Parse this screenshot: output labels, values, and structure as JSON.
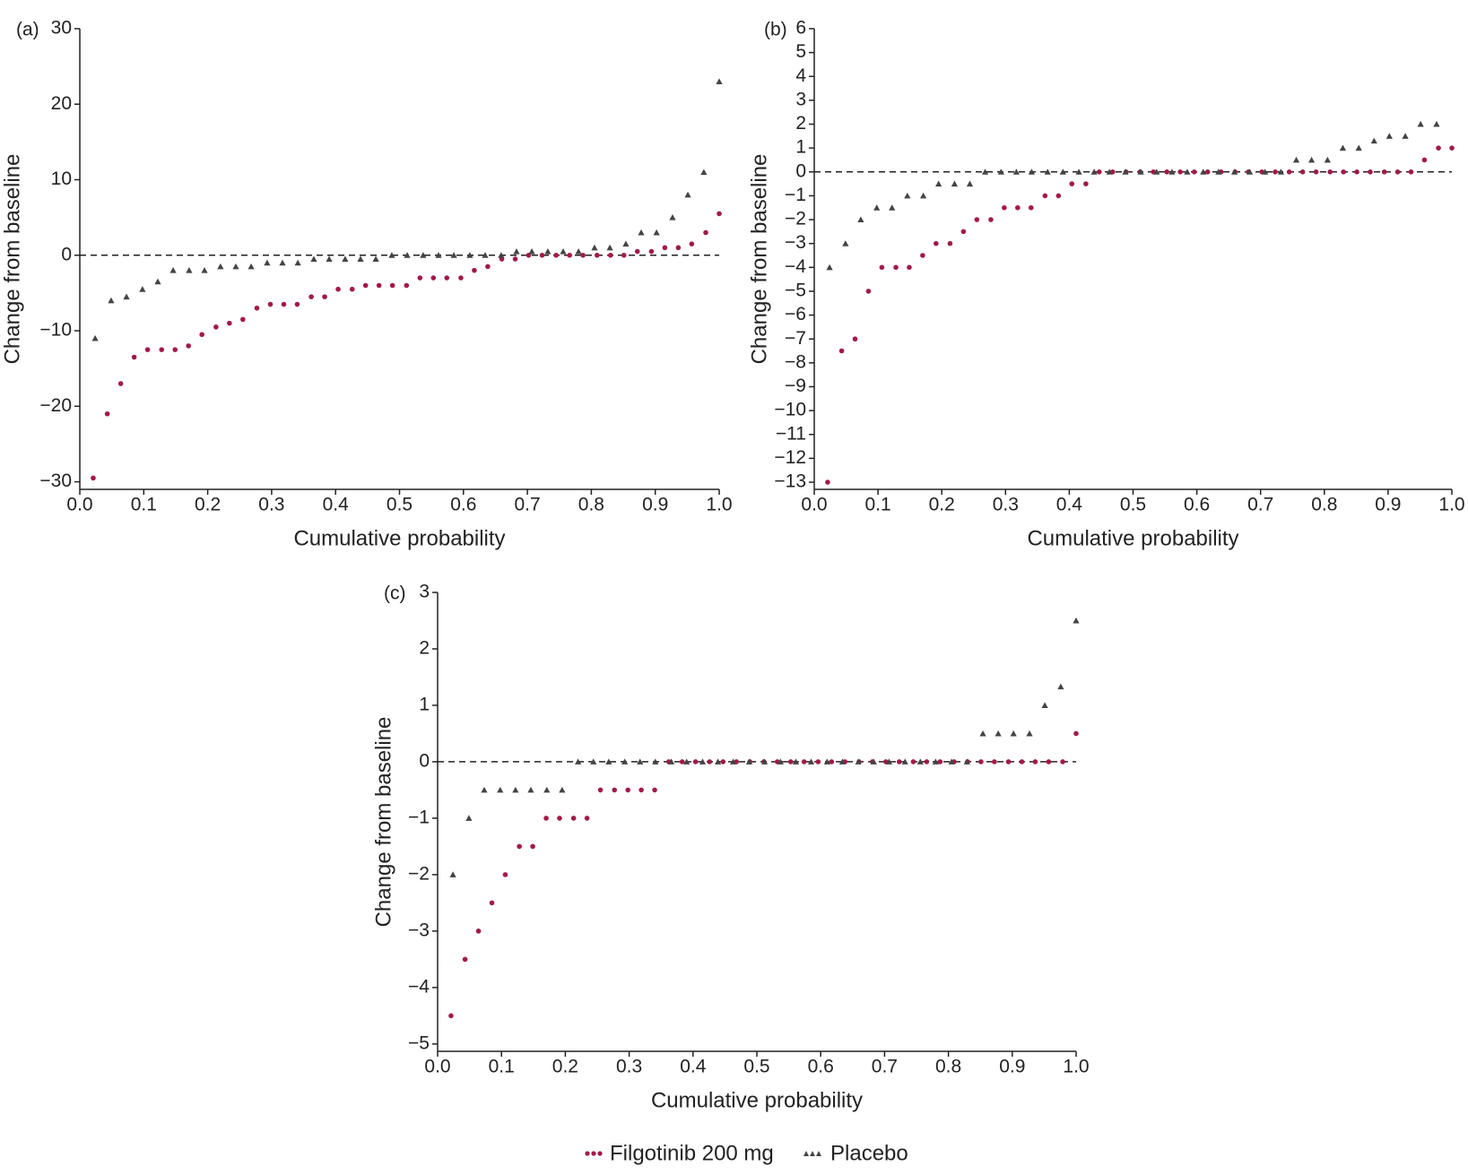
{
  "chart_data": [
    {
      "type": "scatter",
      "title": "(a)",
      "x_label": "Cumulative probability",
      "y_label": "Change from baseline",
      "xlim": [
        0,
        1
      ],
      "ylim": [
        -31,
        30
      ],
      "reference_line": 0,
      "xticks": [
        {
          "value": 0,
          "label": "0.0"
        },
        0.1,
        0.2,
        0.3,
        0.4,
        0.5,
        0.6,
        0.7,
        0.8,
        0.9,
        {
          "value": 1,
          "label": "1.0"
        }
      ],
      "yticks": [
        {
          "value": -30,
          "label": "−30"
        },
        {
          "value": -20,
          "label": "−20"
        },
        {
          "value": -10,
          "label": "−10"
        },
        0,
        10,
        20,
        30
      ],
      "series": [
        {
          "name": "Filgotinib 200 mg",
          "color": "#a3194a",
          "marker": "circle",
          "x": [
            0.021,
            0.043,
            0.064,
            0.085,
            0.106,
            0.128,
            0.149,
            0.17,
            0.191,
            0.213,
            0.234,
            0.255,
            0.277,
            0.298,
            0.319,
            0.34,
            0.362,
            0.383,
            0.404,
            0.426,
            0.447,
            0.468,
            0.489,
            0.511,
            0.532,
            0.553,
            0.574,
            0.596,
            0.617,
            0.638,
            0.66,
            0.681,
            0.702,
            0.723,
            0.745,
            0.766,
            0.787,
            0.809,
            0.83,
            0.851,
            0.872,
            0.894,
            0.915,
            0.936,
            0.957,
            0.979,
            1.0
          ],
          "values": [
            -29.5,
            -21,
            -17,
            -13.5,
            -12.5,
            -12.5,
            -12.5,
            -12,
            -10.5,
            -9.5,
            -9,
            -8.5,
            -7,
            -6.5,
            -6.5,
            -6.5,
            -5.5,
            -5.5,
            -4.5,
            -4.5,
            -4,
            -4,
            -4,
            -4,
            -3,
            -3,
            -3,
            -3,
            -2,
            -1.5,
            -0.5,
            -0.5,
            0,
            0,
            0,
            0,
            0,
            0,
            0,
            0,
            0.5,
            0.5,
            1,
            1,
            1.5,
            3,
            5.5
          ]
        },
        {
          "name": "Placebo",
          "color": "#444444",
          "marker": "triangle",
          "x": [
            0.024,
            0.049,
            0.073,
            0.098,
            0.122,
            0.146,
            0.171,
            0.195,
            0.22,
            0.244,
            0.268,
            0.293,
            0.317,
            0.341,
            0.366,
            0.39,
            0.415,
            0.439,
            0.463,
            0.488,
            0.512,
            0.537,
            0.561,
            0.585,
            0.61,
            0.634,
            0.659,
            0.683,
            0.707,
            0.732,
            0.756,
            0.78,
            0.805,
            0.829,
            0.854,
            0.878,
            0.902,
            0.927,
            0.951,
            0.976,
            1.0
          ],
          "values": [
            -11,
            -6,
            -5.5,
            -4.5,
            -3.5,
            -2,
            -2,
            -2,
            -1.5,
            -1.5,
            -1.5,
            -1,
            -1,
            -1,
            -0.5,
            -0.5,
            -0.5,
            -0.5,
            -0.5,
            0,
            0,
            0,
            0,
            0,
            0,
            0,
            0,
            0.5,
            0.5,
            0.5,
            0.5,
            0.5,
            1,
            1,
            1.5,
            3,
            3,
            5,
            8,
            11,
            23
          ]
        }
      ]
    },
    {
      "type": "scatter",
      "title": "(b)",
      "x_label": "Cumulative probability",
      "y_label": "Change from baseline",
      "xlim": [
        0,
        1
      ],
      "ylim": [
        -13.3,
        6
      ],
      "reference_line": 0,
      "xticks": [
        {
          "value": 0,
          "label": "0.0"
        },
        0.1,
        0.2,
        0.3,
        0.4,
        0.5,
        0.6,
        0.7,
        0.8,
        0.9,
        {
          "value": 1,
          "label": "1.0"
        }
      ],
      "yticks": [
        {
          "value": -13,
          "label": "−13"
        },
        {
          "value": -12,
          "label": "−12"
        },
        {
          "value": -11,
          "label": "−11"
        },
        {
          "value": -10,
          "label": "−10"
        },
        {
          "value": -9,
          "label": "−9"
        },
        {
          "value": -8,
          "label": "−8"
        },
        {
          "value": -7,
          "label": "−7"
        },
        {
          "value": -6,
          "label": "−6"
        },
        {
          "value": -5,
          "label": "−5"
        },
        {
          "value": -4,
          "label": "−4"
        },
        {
          "value": -3,
          "label": "−3"
        },
        {
          "value": -2,
          "label": "−2"
        },
        {
          "value": -1,
          "label": "−1"
        },
        0,
        1,
        2,
        3,
        4,
        5,
        6
      ],
      "series": [
        {
          "name": "Filgotinib 200 mg",
          "color": "#a3194a",
          "marker": "circle",
          "x": [
            0.021,
            0.043,
            0.064,
            0.085,
            0.106,
            0.128,
            0.149,
            0.17,
            0.191,
            0.213,
            0.234,
            0.255,
            0.277,
            0.298,
            0.319,
            0.34,
            0.362,
            0.383,
            0.404,
            0.426,
            0.447,
            0.468,
            0.489,
            0.511,
            0.532,
            0.553,
            0.574,
            0.596,
            0.617,
            0.638,
            0.66,
            0.681,
            0.702,
            0.723,
            0.745,
            0.766,
            0.787,
            0.809,
            0.83,
            0.851,
            0.872,
            0.894,
            0.915,
            0.936,
            0.957,
            0.979,
            1.0
          ],
          "values": [
            -13,
            -7.5,
            -7,
            -5,
            -4,
            -4,
            -4,
            -3.5,
            -3,
            -3,
            -2.5,
            -2,
            -2,
            -1.5,
            -1.5,
            -1.5,
            -1,
            -1,
            -0.5,
            -0.5,
            0,
            0,
            0,
            0,
            0,
            0,
            0,
            0,
            0,
            0,
            0,
            0,
            0,
            0,
            0,
            0,
            0,
            0,
            0,
            0,
            0,
            0,
            0,
            0,
            0.5,
            1,
            1
          ]
        },
        {
          "name": "Placebo",
          "color": "#444444",
          "marker": "triangle",
          "x": [
            0.024,
            0.049,
            0.073,
            0.098,
            0.122,
            0.146,
            0.171,
            0.195,
            0.22,
            0.244,
            0.268,
            0.293,
            0.317,
            0.341,
            0.366,
            0.39,
            0.415,
            0.439,
            0.463,
            0.488,
            0.512,
            0.537,
            0.561,
            0.585,
            0.61,
            0.634,
            0.659,
            0.683,
            0.707,
            0.732,
            0.756,
            0.78,
            0.805,
            0.829,
            0.854,
            0.878,
            0.902,
            0.927,
            0.951,
            0.976
          ],
          "values": [
            -4,
            -3,
            -2,
            -1.5,
            -1.5,
            -1,
            -1,
            -0.5,
            -0.5,
            -0.5,
            0,
            0,
            0,
            0,
            0,
            0,
            0,
            0,
            0,
            0,
            0,
            0,
            0,
            0,
            0,
            0,
            0,
            0,
            0,
            0,
            0.5,
            0.5,
            0.5,
            1,
            1,
            1.3,
            1.5,
            1.5,
            2,
            2
          ]
        }
      ]
    },
    {
      "type": "scatter",
      "title": "(c)",
      "x_label": "Cumulative probability",
      "y_label": "Change from baseline",
      "xlim": [
        0,
        1
      ],
      "ylim": [
        -5.13,
        3
      ],
      "reference_line": 0,
      "xticks": [
        {
          "value": 0,
          "label": "0.0"
        },
        0.1,
        0.2,
        0.3,
        0.4,
        0.5,
        0.6,
        0.7,
        0.8,
        0.9,
        {
          "value": 1,
          "label": "1.0"
        }
      ],
      "yticks": [
        {
          "value": -5,
          "label": "−5"
        },
        {
          "value": -4,
          "label": "−4"
        },
        {
          "value": -3,
          "label": "−3"
        },
        {
          "value": -2,
          "label": "−2"
        },
        {
          "value": -1,
          "label": "−1"
        },
        0,
        1,
        2,
        3
      ],
      "series": [
        {
          "name": "Filgotinib 200 mg",
          "color": "#a3194a",
          "marker": "circle",
          "x": [
            0.021,
            0.043,
            0.064,
            0.085,
            0.106,
            0.128,
            0.149,
            0.17,
            0.191,
            0.213,
            0.234,
            0.255,
            0.277,
            0.298,
            0.319,
            0.34,
            0.362,
            0.383,
            0.404,
            0.426,
            0.447,
            0.468,
            0.489,
            0.511,
            0.532,
            0.553,
            0.574,
            0.596,
            0.617,
            0.638,
            0.66,
            0.681,
            0.702,
            0.723,
            0.745,
            0.766,
            0.787,
            0.809,
            0.83,
            0.851,
            0.872,
            0.894,
            0.915,
            0.936,
            0.957,
            0.979,
            1.0
          ],
          "values": [
            -4.5,
            -3.5,
            -3,
            -2.5,
            -2,
            -1.5,
            -1.5,
            -1,
            -1,
            -1,
            -1,
            -0.5,
            -0.5,
            -0.5,
            -0.5,
            -0.5,
            0,
            0,
            0,
            0,
            0,
            0,
            0,
            0,
            0,
            0,
            0,
            0,
            0,
            0,
            0,
            0,
            0,
            0,
            0,
            0,
            0,
            0,
            0,
            0,
            0,
            0,
            0,
            0,
            0,
            0,
            0.5
          ]
        },
        {
          "name": "Placebo",
          "color": "#444444",
          "marker": "triangle",
          "x": [
            0.024,
            0.049,
            0.073,
            0.098,
            0.122,
            0.146,
            0.171,
            0.195,
            0.22,
            0.244,
            0.268,
            0.293,
            0.317,
            0.341,
            0.366,
            0.39,
            0.415,
            0.439,
            0.463,
            0.488,
            0.512,
            0.537,
            0.561,
            0.585,
            0.61,
            0.634,
            0.659,
            0.683,
            0.707,
            0.732,
            0.756,
            0.78,
            0.805,
            0.829,
            0.854,
            0.878,
            0.902,
            0.927,
            0.951,
            0.976,
            1.0
          ],
          "values": [
            -2,
            -1,
            -0.5,
            -0.5,
            -0.5,
            -0.5,
            -0.5,
            -0.5,
            0,
            0,
            0,
            0,
            0,
            0,
            0,
            0,
            0,
            0,
            0,
            0,
            0,
            0,
            0,
            0,
            0,
            0,
            0,
            0,
            0,
            0,
            0,
            0,
            0,
            0,
            0.5,
            0.5,
            0.5,
            0.5,
            1,
            1.33,
            2.5
          ]
        }
      ]
    }
  ]
}
